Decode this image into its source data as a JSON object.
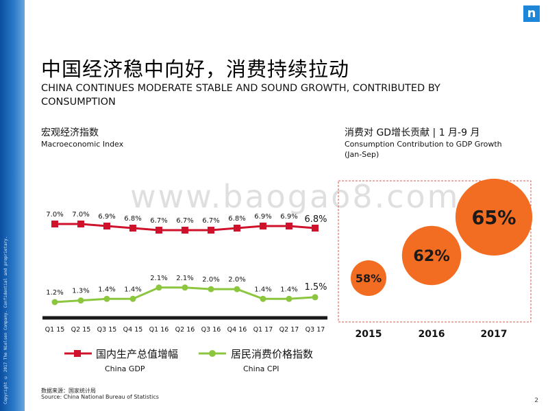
{
  "title_cn": "中国经济稳中向好，消费持续拉动",
  "title_en": "CHINA CONTINUES MODERATE STABLE AND SOUND GROWTH, CONTRIBUTED BY CONSUMPTION",
  "left_section": {
    "title": "宏观经济指数",
    "subtitle": "Macroeconomic Index"
  },
  "right_section": {
    "title": "消费对 GD增长贡献 | 1 月-9 月",
    "subtitle_line1": "Consumption Contribution to GDP Growth",
    "subtitle_line2": "(Jan-Sep)"
  },
  "watermark": "www.baogao8.com",
  "source_cn": "数据来源：国家统计局",
  "source_en": "Source: China National Bureau of Statistics",
  "page_number": "2",
  "logo_letter": "n",
  "strip_text": "Copyright © 2017 The Nielsen Company. Confidential and proprietary.",
  "colors": {
    "gdp": "#d0112b",
    "cpi": "#8cc63f",
    "bubble": "#f26c21",
    "axis": "#1a1a1a",
    "frame": "#d65a4a"
  },
  "chart_data": [
    {
      "type": "line",
      "categories": [
        "Q1 15",
        "Q2 15",
        "Q3 15",
        "Q4 15",
        "Q1 16",
        "Q2 16",
        "Q3 16",
        "Q4 16",
        "Q1 17",
        "Q2 17",
        "Q3 17"
      ],
      "series": [
        {
          "name": "国内生产总值增幅",
          "name_en": "China GDP",
          "values": [
            7.0,
            7.0,
            6.9,
            6.8,
            6.7,
            6.7,
            6.7,
            6.8,
            6.9,
            6.9,
            6.8
          ],
          "labels": [
            "7.0%",
            "7.0%",
            "6.9%",
            "6.8%",
            "6.7%",
            "6.7%",
            "6.7%",
            "6.8%",
            "6.9%",
            "6.9%",
            "6.8%"
          ]
        },
        {
          "name": "居民消费价格指数",
          "name_en": "China CPI",
          "values": [
            1.2,
            1.3,
            1.4,
            1.4,
            2.1,
            2.1,
            2.0,
            2.0,
            1.4,
            1.4,
            1.5
          ],
          "labels": [
            "1.2%",
            "1.3%",
            "1.4%",
            "1.4%",
            "2.1%",
            "2.1%",
            "2.0%",
            "2.0%",
            "1.4%",
            "1.4%",
            "1.5%"
          ]
        }
      ],
      "legend_position": "bottom",
      "grid": false
    },
    {
      "type": "bubble",
      "categories": [
        "2015",
        "2016",
        "2017"
      ],
      "values": [
        58,
        62,
        65
      ],
      "labels": [
        "58%",
        "62%",
        "65%"
      ]
    }
  ]
}
